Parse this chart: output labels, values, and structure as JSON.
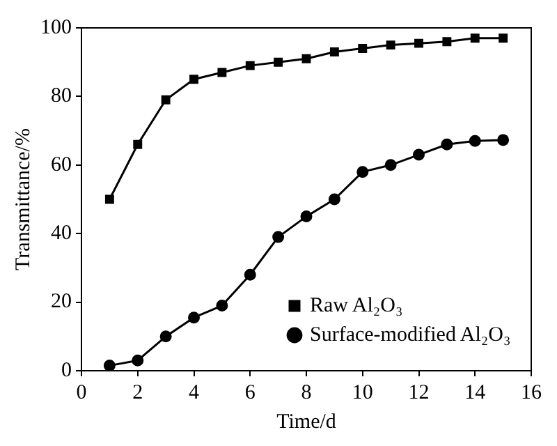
{
  "chart_data": {
    "type": "line",
    "xlabel": "Time/d",
    "ylabel": "Transmittance/%",
    "x": [
      1,
      2,
      3,
      4,
      5,
      6,
      7,
      8,
      9,
      10,
      11,
      12,
      13,
      14,
      15
    ],
    "series": [
      {
        "name": "Raw Al₂O₃",
        "color": "#000000",
        "marker": "square",
        "values": [
          50,
          66,
          79,
          85,
          87,
          89,
          90,
          91,
          93,
          94,
          95,
          95.5,
          96,
          97,
          97
        ]
      },
      {
        "name": "Surface-modified Al₂O₃",
        "color": "#000000",
        "marker": "circle",
        "values": [
          1.5,
          3,
          10,
          15.5,
          19,
          28,
          39,
          45,
          50,
          58,
          60,
          63,
          66,
          67,
          67.3
        ]
      }
    ],
    "xlim": [
      0,
      16
    ],
    "xticks": [
      0,
      2,
      4,
      6,
      8,
      10,
      12,
      14,
      16
    ],
    "ylim": [
      0,
      100
    ],
    "yticks": [
      0,
      20,
      40,
      60,
      80,
      100
    ],
    "grid": false,
    "legend": "bottom right",
    "line_style": "solid"
  }
}
